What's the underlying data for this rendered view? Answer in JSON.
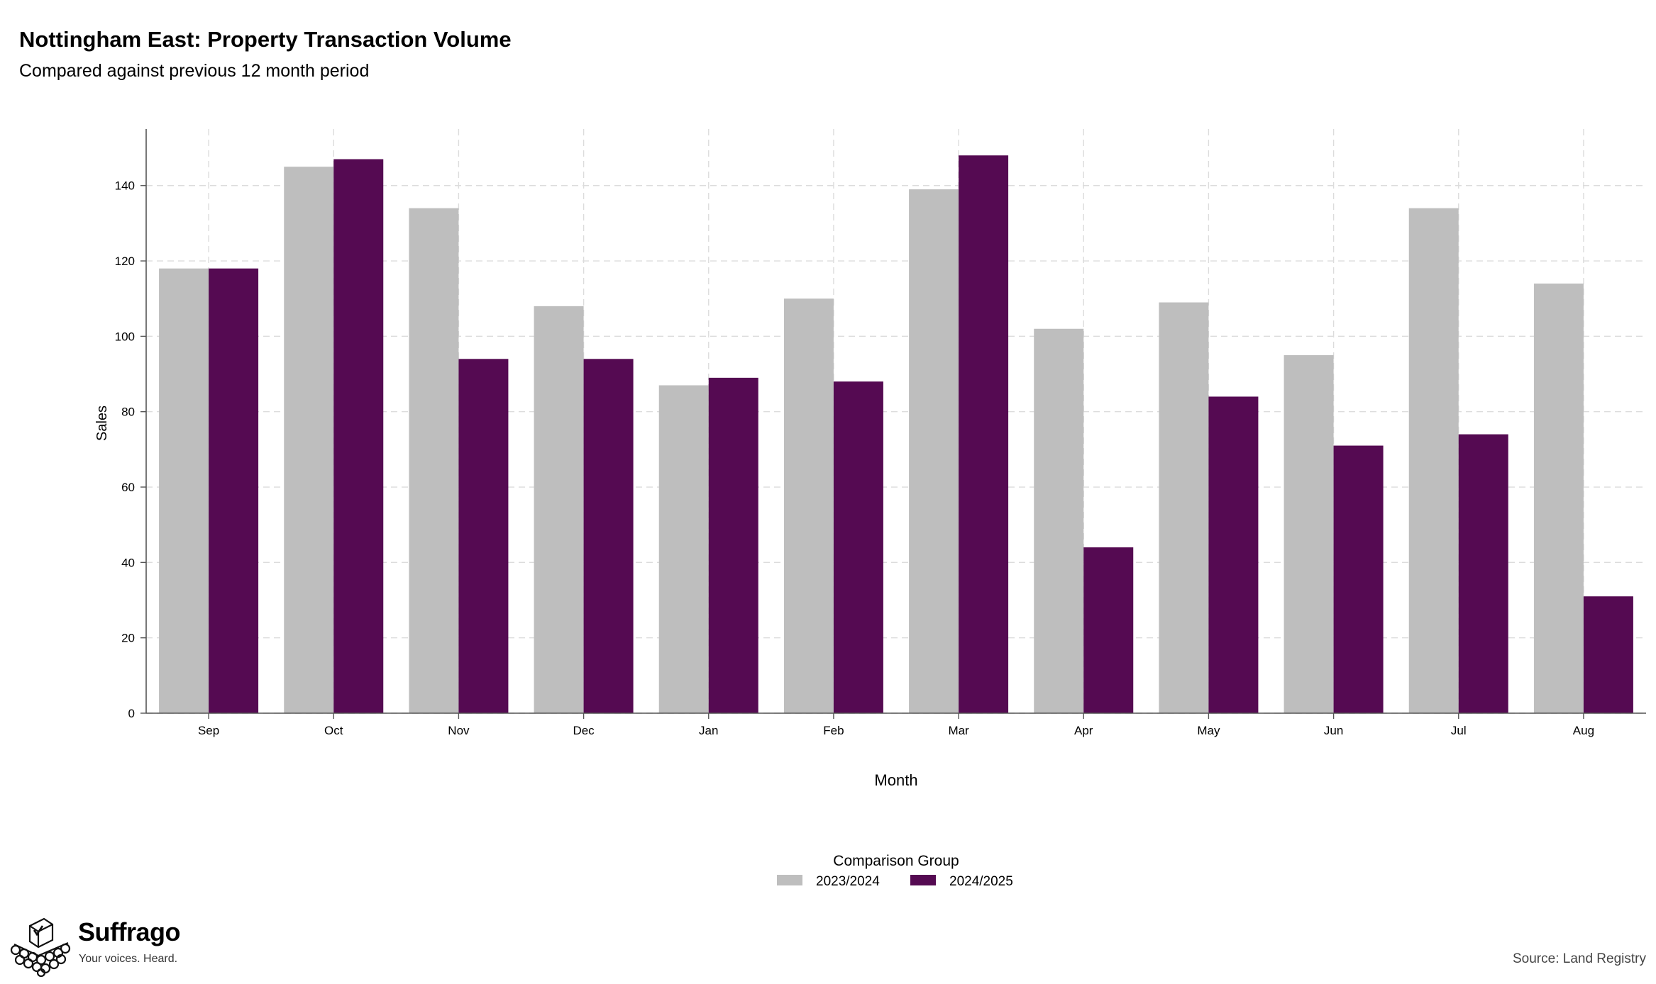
{
  "title": "Nottingham East: Property Transaction Volume",
  "subtitle": "Compared against previous 12 month period",
  "source": "Source: Land Registry",
  "brand": {
    "name": "Suffrago",
    "tagline": "Your voices. Heard.",
    "icon": "ballot-box-crowd-logo"
  },
  "chart_data": {
    "type": "bar",
    "categories": [
      "Sep",
      "Oct",
      "Nov",
      "Dec",
      "Jan",
      "Feb",
      "Mar",
      "Apr",
      "May",
      "Jun",
      "Jul",
      "Aug"
    ],
    "series": [
      {
        "name": "2023/2024",
        "color": "#bebebe",
        "values": [
          118,
          145,
          134,
          108,
          87,
          110,
          139,
          102,
          109,
          95,
          134,
          114
        ]
      },
      {
        "name": "2024/2025",
        "color": "#550a52",
        "values": [
          118,
          147,
          94,
          94,
          89,
          88,
          148,
          44,
          84,
          71,
          74,
          31
        ]
      }
    ],
    "xlabel": "Month",
    "ylabel": "Sales",
    "ylim": [
      0,
      155
    ],
    "yticks": [
      0,
      20,
      40,
      60,
      80,
      100,
      120,
      140
    ],
    "grid": true,
    "legend": {
      "title": "Comparison Group",
      "position": "bottom-center"
    }
  }
}
